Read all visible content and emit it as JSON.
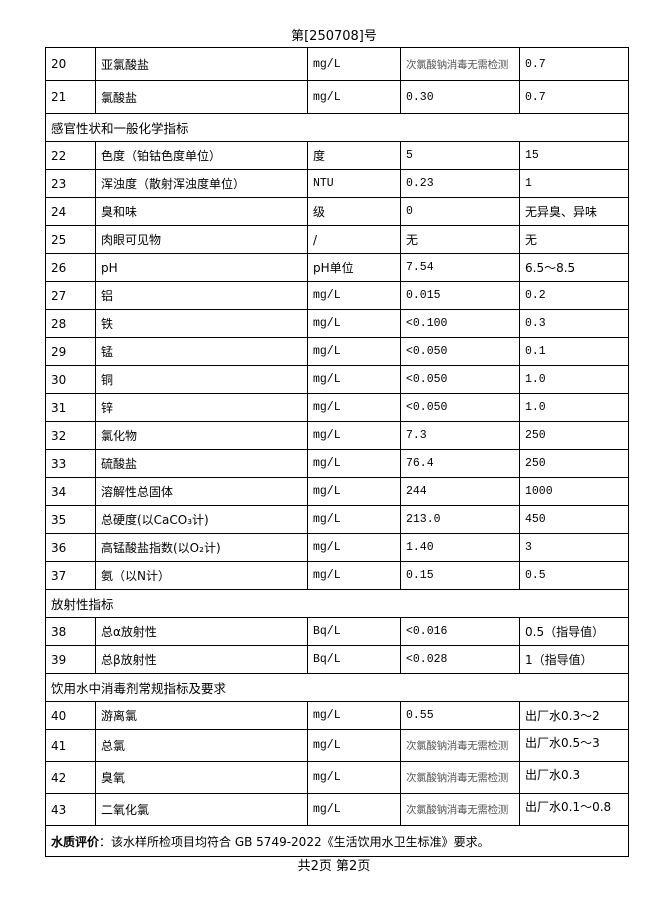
{
  "header": {
    "report_number": "第[250708]号"
  },
  "rows": [
    {
      "type": "item",
      "no": "20",
      "name": "亚氯酸盐",
      "unit": "mg/L",
      "result": "次氯酸钠消毒无需检测",
      "limit": "0.7",
      "grey": true
    },
    {
      "type": "item",
      "no": "21",
      "name": "氯酸盐",
      "unit": "mg/L",
      "result": "0.30",
      "limit": "0.7"
    },
    {
      "type": "section",
      "title": "感官性状和一般化学指标"
    },
    {
      "type": "item",
      "no": "22",
      "name": "色度（铂钴色度单位）",
      "unit": "度",
      "result": "5",
      "limit": "15"
    },
    {
      "type": "item",
      "no": "23",
      "name": "浑浊度（散射浑浊度单位）",
      "unit": "NTU",
      "result": "0.23",
      "limit": "1"
    },
    {
      "type": "item",
      "no": "24",
      "name": "臭和味",
      "unit": "级",
      "result": "0",
      "limit": "无异臭、异味"
    },
    {
      "type": "item",
      "no": "25",
      "name": "肉眼可见物",
      "unit": "/",
      "result": "无",
      "limit": "无"
    },
    {
      "type": "item",
      "no": "26",
      "name": "pH",
      "unit": "pH单位",
      "result": "7.54",
      "limit": "6.5～8.5"
    },
    {
      "type": "item",
      "no": "27",
      "name": "铝",
      "unit": "mg/L",
      "result": "0.015",
      "limit": "0.2"
    },
    {
      "type": "item",
      "no": "28",
      "name": "铁",
      "unit": "mg/L",
      "result": "<0.100",
      "limit": "0.3"
    },
    {
      "type": "item",
      "no": "29",
      "name": "锰",
      "unit": "mg/L",
      "result": "<0.050",
      "limit": "0.1"
    },
    {
      "type": "item",
      "no": "30",
      "name": "铜",
      "unit": "mg/L",
      "result": "<0.050",
      "limit": "1.0"
    },
    {
      "type": "item",
      "no": "31",
      "name": "锌",
      "unit": "mg/L",
      "result": "<0.050",
      "limit": "1.0"
    },
    {
      "type": "item",
      "no": "32",
      "name": "氯化物",
      "unit": "mg/L",
      "result": "7.3",
      "limit": "250"
    },
    {
      "type": "item",
      "no": "33",
      "name": "硫酸盐",
      "unit": "mg/L",
      "result": "76.4",
      "limit": "250"
    },
    {
      "type": "item",
      "no": "34",
      "name": "溶解性总固体",
      "unit": "mg/L",
      "result": "244",
      "limit": "1000"
    },
    {
      "type": "item",
      "no": "35",
      "name": "总硬度(以CaCO₃计)",
      "unit": "mg/L",
      "result": "213.0",
      "limit": "450"
    },
    {
      "type": "item",
      "no": "36",
      "name": "高锰酸盐指数(以O₂计)",
      "unit": "mg/L",
      "result": "1.40",
      "limit": "3"
    },
    {
      "type": "item",
      "no": "37",
      "name": "氨（以N计）",
      "unit": "mg/L",
      "result": "0.15",
      "limit": "0.5"
    },
    {
      "type": "section",
      "title": "放射性指标"
    },
    {
      "type": "item",
      "no": "38",
      "name": "总α放射性",
      "unit": "Bq/L",
      "result": "<0.016",
      "limit": "0.5（指导值）"
    },
    {
      "type": "item",
      "no": "39",
      "name": "总β放射性",
      "unit": "Bq/L",
      "result": "<0.028",
      "limit": "1（指导值）"
    },
    {
      "type": "section",
      "title": "饮用水中消毒剂常规指标及要求"
    },
    {
      "type": "item",
      "no": "40",
      "name": "游离氯",
      "unit": "mg/L",
      "result": "0.55",
      "limit": "出厂水0.3～2"
    },
    {
      "type": "item",
      "no": "41",
      "name": "总氯",
      "unit": "mg/L",
      "result": "次氯酸钠消毒无需检测",
      "limit": "出厂水0.5～3",
      "grey": true,
      "top": true
    },
    {
      "type": "item",
      "no": "42",
      "name": "臭氧",
      "unit": "mg/L",
      "result": "次氯酸钠消毒无需检测",
      "limit": "出厂水0.3",
      "grey": true,
      "top": true
    },
    {
      "type": "item",
      "no": "43",
      "name": "二氧化氯",
      "unit": "mg/L",
      "result": "次氯酸钠消毒无需检测",
      "limit": "出厂水0.1～0.8",
      "grey": true,
      "top": true
    }
  ],
  "evaluation": {
    "label": "水质评价",
    "text": "：该水样所检项目均符合 GB  5749-2022《生活饮用水卫生标准》要求。"
  },
  "footer": {
    "pages": "共2页 第2页"
  }
}
